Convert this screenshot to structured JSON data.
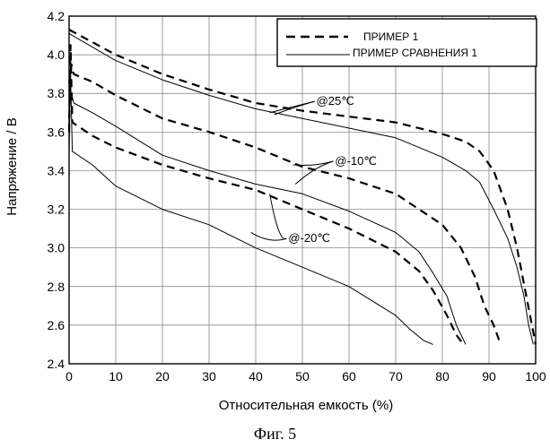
{
  "chart_data": {
    "type": "line",
    "xlabel": "Относительная емкость (%)",
    "ylabel": "Напряжение / В",
    "xlim": [
      0,
      100
    ],
    "ylim": [
      2.4,
      4.2
    ],
    "xticks": [
      0,
      10,
      20,
      30,
      40,
      50,
      60,
      70,
      80,
      90,
      100
    ],
    "yticks": [
      2.4,
      2.6,
      2.8,
      3.0,
      3.2,
      3.4,
      3.6,
      3.8,
      4.0,
      4.2
    ],
    "grid": true,
    "legend_position": "top-right",
    "legend": [
      {
        "label": "ПРИМЕР 1",
        "style": "dashed"
      },
      {
        "label": "ПРИМЕР СРАВНЕНИЯ 1",
        "style": "solid"
      }
    ],
    "annotations": [
      "@25℃",
      "@-10℃",
      "@-20℃"
    ],
    "series": [
      {
        "legend": "ПРИМЕР 1",
        "condition": "@25℃",
        "style": "dashed",
        "x": [
          0,
          10,
          20,
          30,
          40,
          50,
          60,
          70,
          80,
          85,
          88,
          91,
          94,
          96,
          98,
          100
        ],
        "y": [
          4.13,
          4.0,
          3.9,
          3.82,
          3.75,
          3.71,
          3.68,
          3.65,
          3.59,
          3.55,
          3.5,
          3.4,
          3.2,
          3.0,
          2.75,
          2.5
        ]
      },
      {
        "legend": "ПРИМЕР СРАВНЕНИЯ 1",
        "condition": "@25℃",
        "style": "solid",
        "x": [
          0,
          10,
          20,
          30,
          40,
          50,
          60,
          70,
          75,
          80,
          85,
          88,
          91,
          94,
          96,
          97.5,
          98.5,
          99.5
        ],
        "y": [
          4.11,
          3.97,
          3.87,
          3.79,
          3.72,
          3.67,
          3.62,
          3.57,
          3.52,
          3.47,
          3.4,
          3.34,
          3.2,
          3.05,
          2.9,
          2.75,
          2.6,
          2.5
        ]
      },
      {
        "legend": "ПРИМЕР 1",
        "condition": "@-10℃",
        "style": "dashed",
        "x": [
          0,
          0.5,
          1,
          5,
          10,
          20,
          30,
          40,
          50,
          60,
          70,
          75,
          80,
          84,
          87,
          89,
          91,
          92.5
        ],
        "y": [
          3.85,
          3.95,
          3.9,
          3.86,
          3.79,
          3.67,
          3.6,
          3.52,
          3.42,
          3.36,
          3.28,
          3.2,
          3.12,
          3.0,
          2.85,
          2.7,
          2.6,
          2.5
        ]
      },
      {
        "legend": "ПРИМЕР СРАВНЕНИЯ 1",
        "condition": "@-10℃",
        "style": "solid",
        "x": [
          0,
          0.5,
          1,
          5,
          10,
          20,
          30,
          40,
          50,
          60,
          70,
          75,
          78,
          81,
          83,
          85
        ],
        "y": [
          3.7,
          3.8,
          3.75,
          3.7,
          3.63,
          3.48,
          3.4,
          3.33,
          3.28,
          3.19,
          3.08,
          2.98,
          2.87,
          2.75,
          2.6,
          2.5
        ]
      },
      {
        "legend": "ПРИМЕР 1",
        "condition": "@-20℃",
        "style": "dashed",
        "x": [
          0,
          0.3,
          0.7,
          5,
          10,
          20,
          30,
          40,
          50,
          60,
          70,
          75,
          78,
          81,
          83,
          84.5
        ],
        "y": [
          3.6,
          4.05,
          3.65,
          3.58,
          3.52,
          3.43,
          3.36,
          3.3,
          3.2,
          3.1,
          2.98,
          2.88,
          2.78,
          2.65,
          2.55,
          2.5
        ]
      },
      {
        "legend": "ПРИМЕР СРАВНЕНИЯ 1",
        "condition": "@-20℃",
        "style": "solid",
        "x": [
          0,
          0.3,
          0.7,
          5,
          10,
          20,
          30,
          40,
          50,
          60,
          70,
          73,
          76,
          78
        ],
        "y": [
          3.5,
          3.9,
          3.5,
          3.43,
          3.32,
          3.2,
          3.12,
          3.0,
          2.9,
          2.8,
          2.65,
          2.58,
          2.52,
          2.5
        ]
      }
    ]
  },
  "caption": "Фиг. 5"
}
